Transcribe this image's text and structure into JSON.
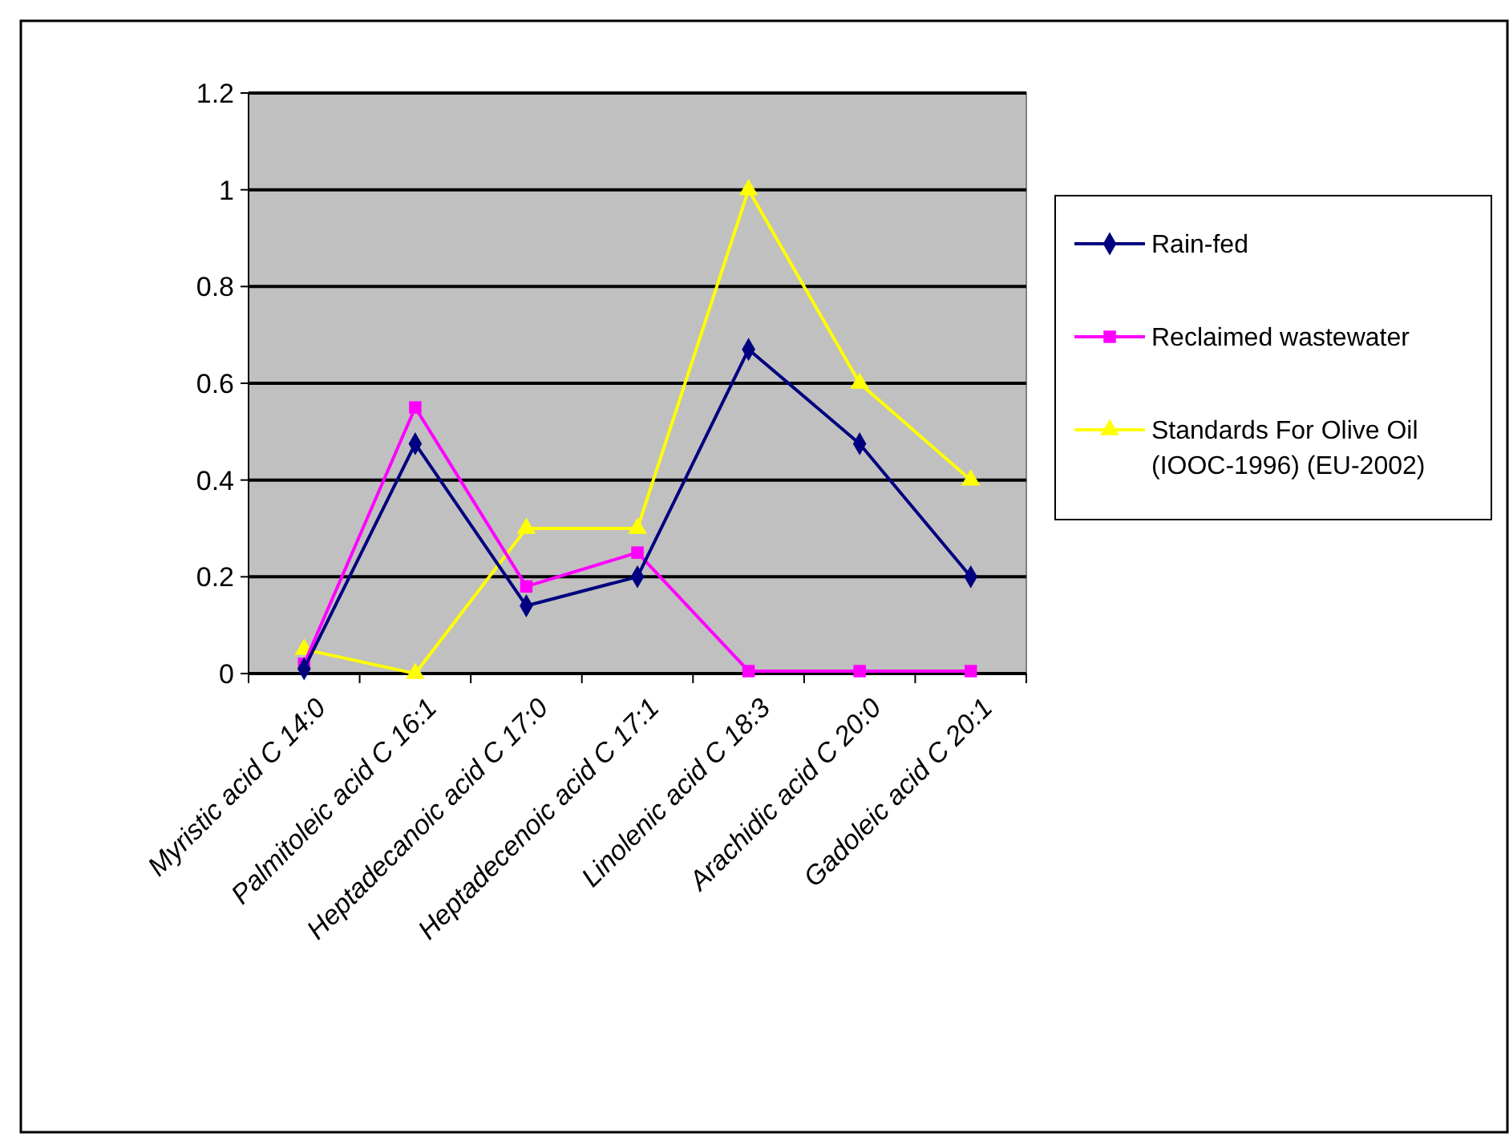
{
  "chart_data": {
    "type": "line",
    "categories": [
      "Myristic acid C 14:0",
      "Palmitoleic acid C 16:1",
      "Heptadecanoic acid C 17:0",
      "Heptadecenoic acid C 17:1",
      "Linolenic acid C 18:3",
      "Arachidic acid C 20:0",
      "Gadoleic acid C 20:1"
    ],
    "series": [
      {
        "name": "Rain-fed",
        "color": "#000080",
        "marker": "diamond",
        "values": [
          0.01,
          0.475,
          0.14,
          0.2,
          0.67,
          0.475,
          0.2
        ]
      },
      {
        "name": "Reclaimed wastewater",
        "color": "#ff00ff",
        "marker": "square",
        "values": [
          0.02,
          0.55,
          0.18,
          0.25,
          0.005,
          0.005,
          0.005
        ]
      },
      {
        "name": "Standards For Olive Oil (IOOC-1996) (EU-2002)",
        "color": "#ffff00",
        "marker": "triangle",
        "values": [
          0.05,
          0,
          0.3,
          0.3,
          1.0,
          0.6,
          0.4
        ]
      }
    ],
    "ylim": [
      0,
      1.2
    ],
    "yticks": [
      0,
      0.2,
      0.4,
      0.6,
      0.8,
      1,
      1.2
    ],
    "grid": "y",
    "legend": "right"
  }
}
